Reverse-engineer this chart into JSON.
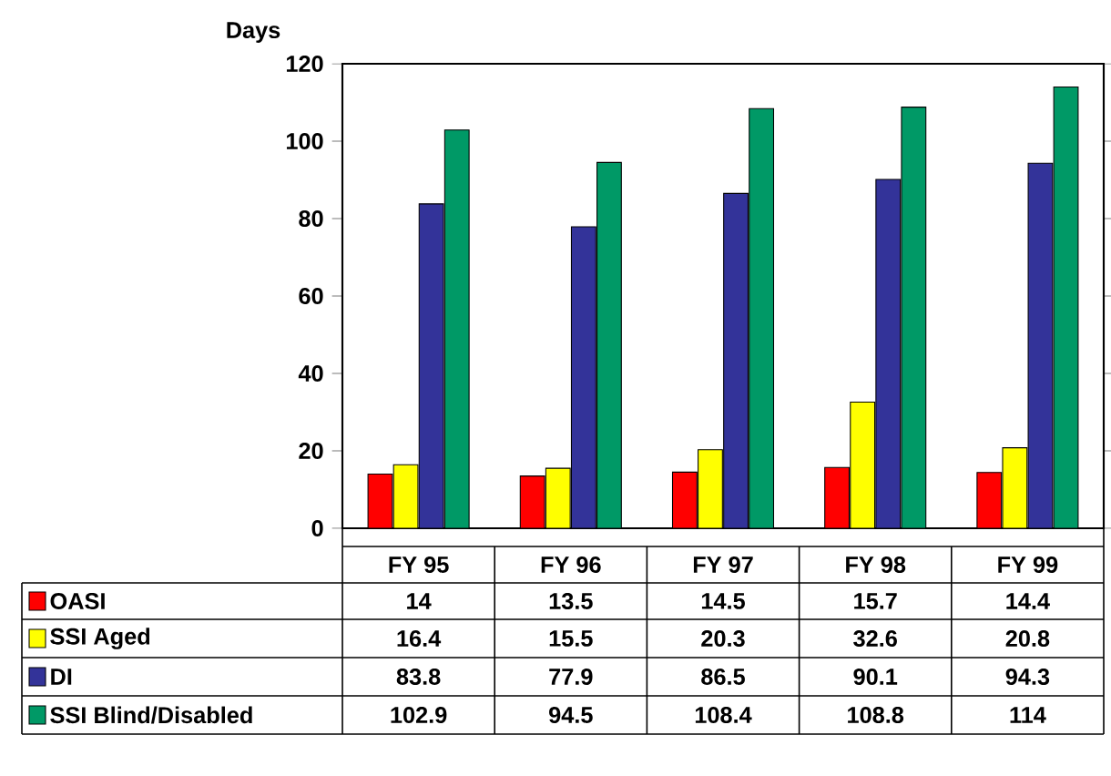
{
  "chart_data": {
    "type": "bar",
    "ylabel": "Days",
    "categories": [
      "FY 95",
      "FY 96",
      "FY 97",
      "FY 98",
      "FY 99"
    ],
    "series": [
      {
        "name": "OASI",
        "color": "#ff0000",
        "values": [
          14,
          13.5,
          14.5,
          15.7,
          14.4
        ]
      },
      {
        "name": "SSI Aged",
        "color": "#ffff00",
        "values": [
          16.4,
          15.5,
          20.3,
          32.6,
          20.8
        ]
      },
      {
        "name": "DI",
        "color": "#333399",
        "values": [
          83.8,
          77.9,
          86.5,
          90.1,
          94.3
        ]
      },
      {
        "name": "SSI Blind/Disabled",
        "color": "#009966",
        "values": [
          102.9,
          94.5,
          108.4,
          108.8,
          114
        ]
      }
    ],
    "ylim": [
      0,
      120
    ],
    "yticks": [
      0,
      20,
      40,
      60,
      80,
      100,
      120
    ],
    "data_labels": true,
    "legend": "bottom",
    "grid": false
  }
}
